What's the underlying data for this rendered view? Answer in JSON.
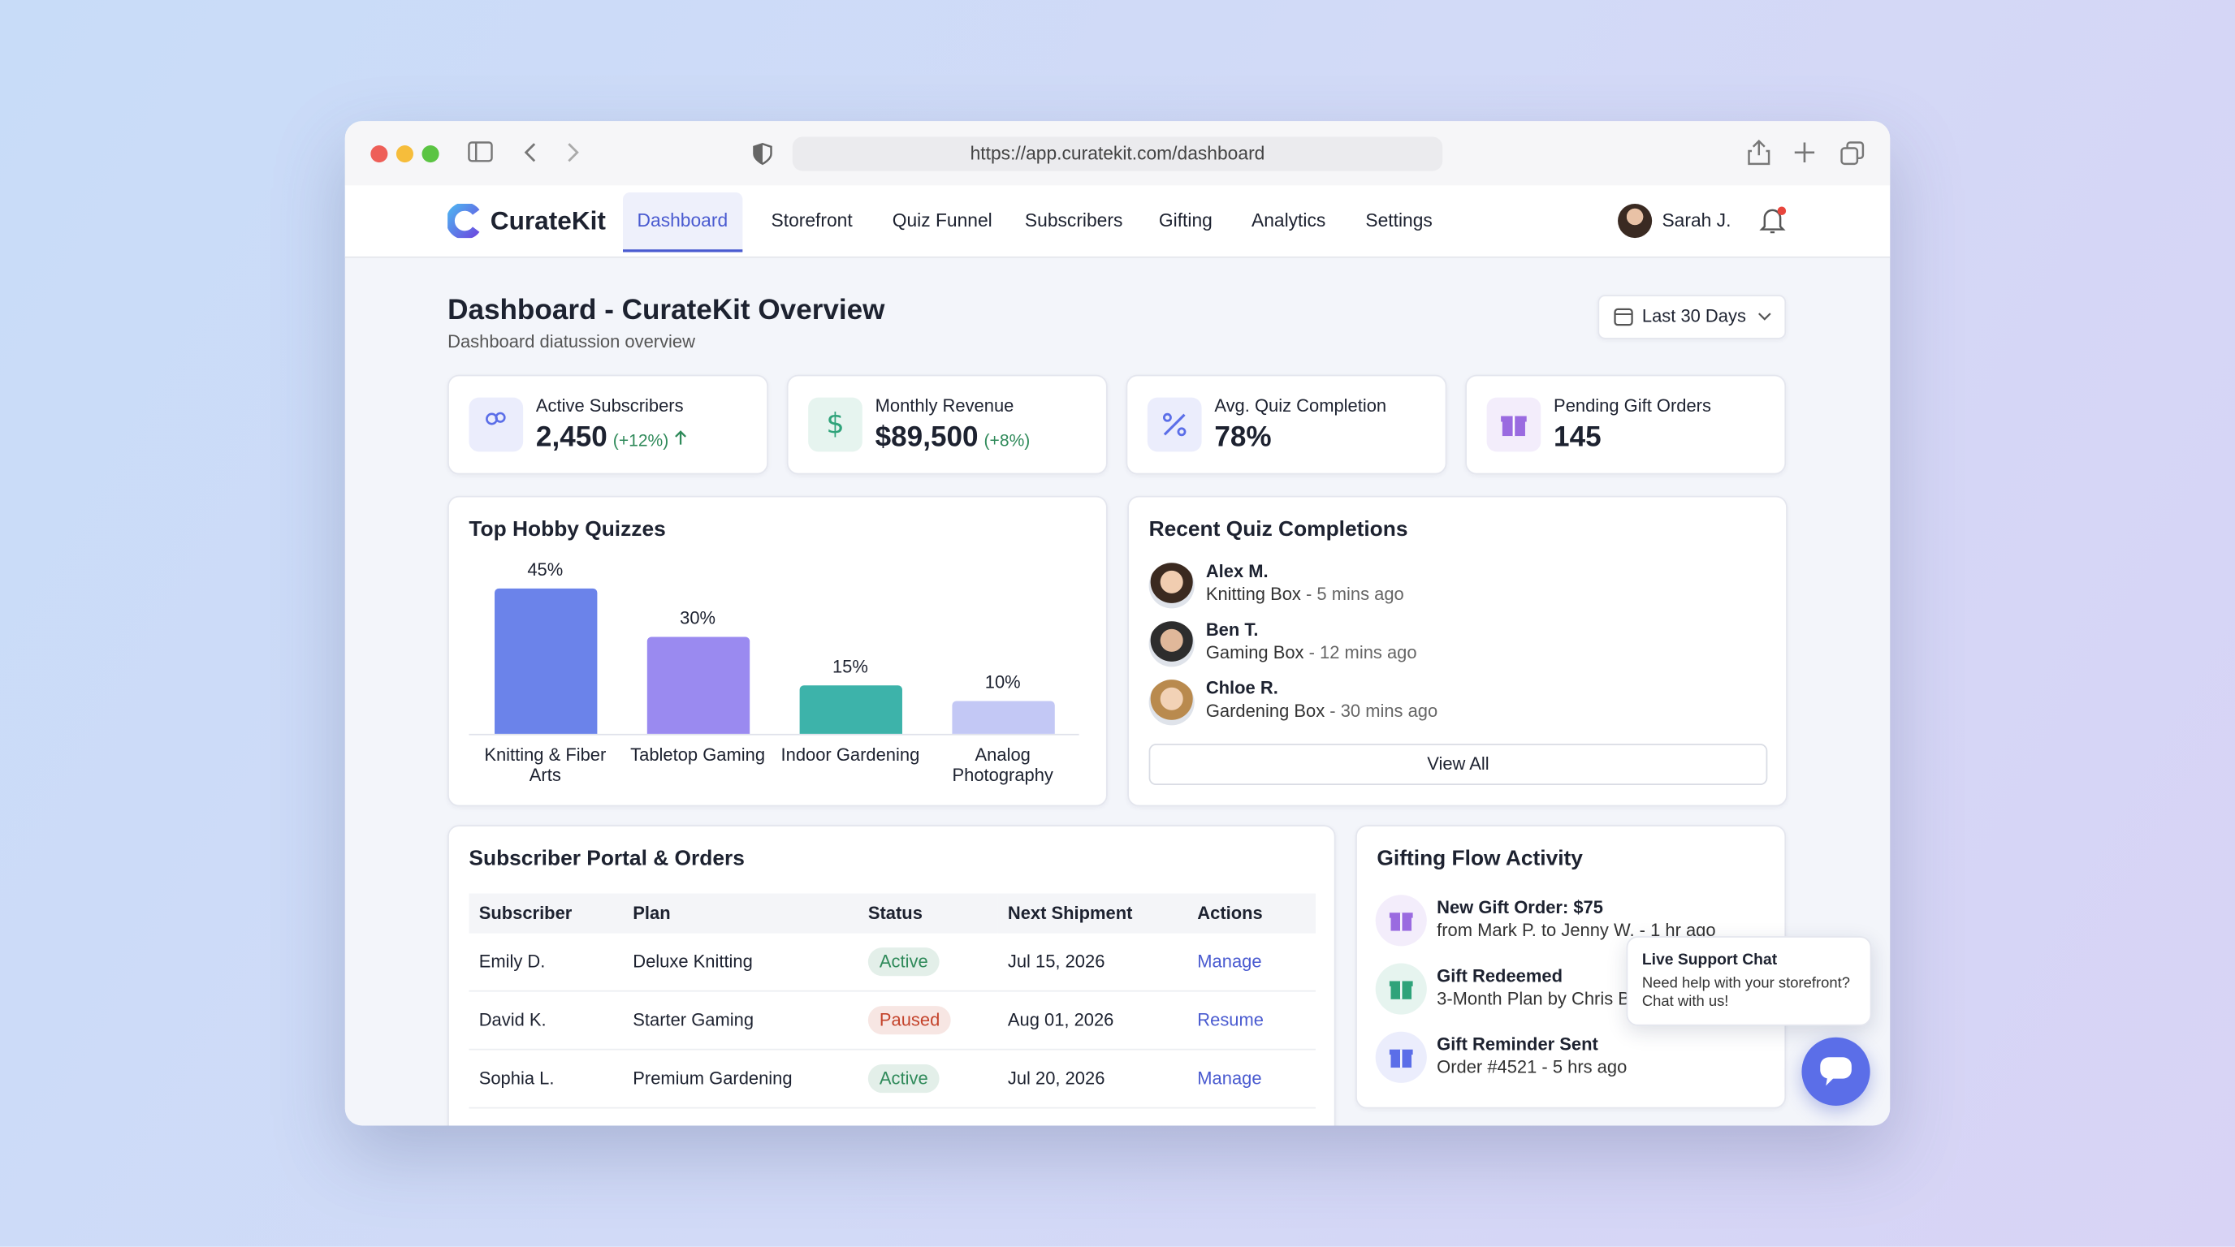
{
  "browser": {
    "url": "https://app.curatekit.com/dashboard"
  },
  "nav": {
    "brand": "CurateKit",
    "items": [
      "Dashboard",
      "Storefront",
      "Quiz Funnel",
      "Subscribers",
      "Gifting",
      "Analytics",
      "Settings"
    ],
    "user": "Sarah J."
  },
  "header": {
    "title": "Dashboard - CurateKit Overview",
    "subtitle": "Dashboard diatussion overview",
    "range": "Last 30 Days"
  },
  "stats": [
    {
      "label": "Active Subscribers",
      "value": "2,450",
      "change": "(+12%)",
      "color": "#5b6ee8"
    },
    {
      "label": "Monthly Revenue",
      "value": "$89,500",
      "change": "(+8%)",
      "color": "#2fa37a"
    },
    {
      "label": "Avg. Quiz Completion",
      "value": "78%",
      "color": "#5b6ee8"
    },
    {
      "label": "Pending Gift Orders",
      "value": "145",
      "color": "#9a6be0"
    }
  ],
  "chart_data": {
    "type": "bar",
    "title": "Top Hobby Quizzes",
    "categories": [
      "Knitting & Fiber Arts",
      "Tabletop Gaming",
      "Indoor Gardening",
      "Analog Photography"
    ],
    "values": [
      45,
      30,
      15,
      10
    ],
    "value_labels": [
      "45%",
      "30%",
      "15%",
      "10%"
    ],
    "colors": [
      "#6b83ea",
      "#9a8af0",
      "#3db3aa",
      "#c3c8f5"
    ]
  },
  "recent": {
    "title": "Recent Quiz Completions",
    "items": [
      {
        "name": "Alex M.",
        "box": "Knitting Box",
        "time": "- 5 mins ago"
      },
      {
        "name": "Ben T.",
        "box": "Gaming Box",
        "time": "- 12 mins ago"
      },
      {
        "name": "Chloe R.",
        "box": "Gardening Box",
        "time": "- 30 mins ago"
      }
    ],
    "button": "View All"
  },
  "table": {
    "title": "Subscriber Portal & Orders",
    "columns": [
      "Subscriber",
      "Plan",
      "Status",
      "Next Shipment",
      "Actions"
    ],
    "rows": [
      {
        "cells": [
          "Emily D.",
          "Deluxe Knitting",
          "Active",
          "Jul 15, 2026",
          "Manage"
        ],
        "status_color": "#2f8a5a"
      },
      {
        "cells": [
          "David K.",
          "Starter Gaming",
          "Paused",
          "Aug 01, 2026",
          "Resume"
        ],
        "status_color": "#c4442c"
      },
      {
        "cells": [
          "Sophia L.",
          "Premium Gardening",
          "Active",
          "Jul 20, 2026",
          "Manage"
        ],
        "status_color": "#2f8a5a"
      }
    ]
  },
  "gifting": {
    "title": "Gifting Flow Activity",
    "items": [
      {
        "title": "New Gift Order: $75",
        "detail": "from Mark P. to Jenny W. - 1 hr ago",
        "color": "#9a6be0"
      },
      {
        "title": "Gift Redeemed",
        "detail": "3-Month Plan by Chris B.",
        "color": "#2fa37a"
      },
      {
        "title": "Gift Reminder Sent",
        "detail": "Order #4521 - 5 hrs ago",
        "color": "#5b6ee8"
      }
    ]
  },
  "chat": {
    "title": "Live Support Chat",
    "text": "Need help with your storefront? Chat with us!"
  }
}
